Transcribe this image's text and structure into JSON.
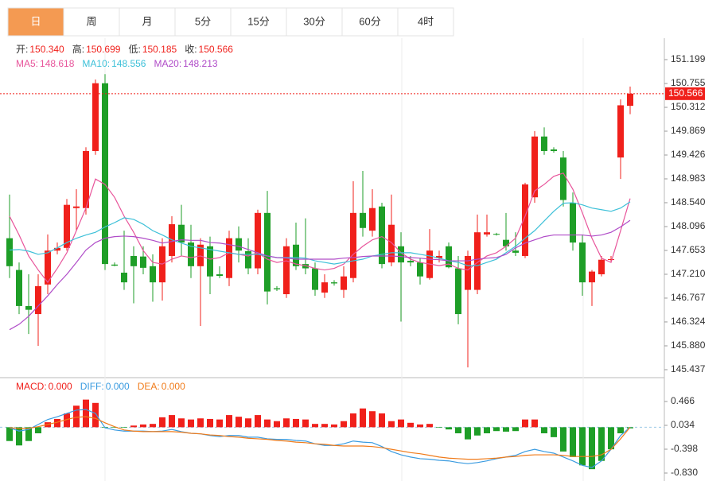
{
  "tabs": [
    "日",
    "周",
    "月",
    "5分",
    "15分",
    "30分",
    "60分",
    "4时"
  ],
  "active_tab": 0,
  "chart_data": [
    {
      "type": "candlestick",
      "quote": [
        {
          "label": "开:",
          "value": "150.340"
        },
        {
          "label": "高:",
          "value": "150.699"
        },
        {
          "label": "低:",
          "value": "150.185"
        },
        {
          "label": "收:",
          "value": "150.566"
        }
      ],
      "up_color": "#f0201b",
      "down_color": "#1e9e27",
      "open": [
        147.88,
        147.29,
        146.62,
        146.47,
        147.02,
        147.65,
        147.7,
        148.44,
        148.44,
        149.5,
        150.76,
        147.39,
        147.24,
        147.55,
        147.54,
        147.36,
        147.06,
        147.55,
        148.13,
        147.8,
        147.36,
        147.73,
        147.21,
        147.14,
        147.88,
        147.64,
        147.32,
        148.35,
        146.95,
        146.84,
        147.76,
        147.4,
        147.32,
        146.87,
        147.06,
        146.92,
        147.14,
        148.35,
        148.02,
        148.47,
        147.43,
        147.73,
        147.46,
        147.43,
        147.14,
        147.51,
        147.73,
        147.32,
        146.92,
        146.92,
        147.95,
        147.96,
        147.85,
        147.65,
        147.55,
        148.64,
        149.77,
        149.53,
        149.38,
        148.54,
        147.8,
        147.06,
        147.21,
        147.48,
        149.38,
        150.34
      ],
      "high": [
        148.69,
        147.43,
        147.21,
        147.21,
        147.95,
        147.8,
        148.61,
        148.79,
        149.57,
        150.83,
        150.93,
        147.43,
        148.02,
        147.73,
        147.73,
        147.58,
        147.88,
        148.29,
        148.5,
        148.13,
        147.88,
        147.91,
        147.36,
        148.02,
        148.1,
        147.88,
        148.41,
        148.76,
        146.99,
        147.88,
        148.17,
        148.25,
        147.43,
        147.21,
        147.1,
        147.36,
        148.94,
        149.13,
        148.79,
        148.54,
        148.69,
        147.99,
        147.55,
        147.51,
        148.05,
        147.65,
        147.8,
        147.55,
        147.65,
        148.32,
        148.32,
        147.98,
        148.35,
        147.99,
        148.91,
        149.87,
        149.94,
        149.57,
        149.5,
        148.73,
        147.95,
        147.29,
        147.55,
        147.55,
        150.46,
        150.699
      ],
      "low": [
        147.14,
        146.47,
        146.1,
        145.88,
        146.84,
        147.58,
        147.65,
        148.02,
        148.32,
        149.43,
        147.29,
        147.36,
        146.92,
        146.67,
        147.21,
        146.7,
        146.72,
        147.43,
        147.55,
        147.14,
        146.25,
        146.84,
        147.14,
        146.99,
        147.43,
        147.21,
        147.21,
        146.65,
        146.9,
        146.77,
        147.29,
        147.21,
        146.81,
        146.77,
        147.0,
        146.77,
        147.06,
        147.91,
        147.91,
        147.32,
        147.36,
        146.33,
        147.36,
        147.02,
        147.11,
        147.43,
        147.32,
        146.28,
        145.48,
        146.84,
        147.91,
        147.93,
        147.65,
        147.55,
        147.51,
        148.54,
        149.43,
        149.47,
        148.47,
        147.65,
        146.81,
        146.62,
        147.17,
        147.45,
        148.98,
        150.185
      ],
      "close": [
        147.36,
        146.62,
        146.55,
        146.99,
        147.65,
        147.7,
        148.5,
        148.47,
        149.5,
        150.76,
        147.4,
        147.37,
        147.06,
        147.36,
        147.33,
        147.06,
        147.73,
        148.14,
        147.8,
        147.36,
        147.76,
        147.17,
        147.18,
        147.88,
        147.65,
        147.32,
        148.35,
        146.89,
        146.93,
        147.73,
        147.36,
        147.32,
        146.92,
        147.06,
        147.04,
        147.17,
        148.35,
        148.07,
        148.44,
        147.4,
        148.13,
        147.43,
        147.43,
        147.17,
        147.65,
        147.55,
        147.34,
        146.47,
        147.55,
        147.99,
        147.99,
        147.95,
        147.73,
        147.61,
        148.88,
        149.77,
        149.5,
        149.5,
        148.59,
        147.8,
        147.06,
        147.26,
        147.48,
        147.49,
        150.35,
        150.566
      ],
      "series": [
        {
          "name": "MA5:",
          "legend_value": "148.618",
          "color": "#e8559b",
          "values": [
            148.29,
            147.94,
            147.55,
            147.29,
            147.06,
            147.32,
            147.61,
            148.02,
            148.44,
            148.98,
            148.88,
            148.64,
            148.29,
            147.99,
            147.65,
            147.43,
            147.4,
            147.49,
            147.55,
            147.52,
            147.55,
            147.49,
            147.52,
            147.61,
            147.58,
            147.55,
            147.61,
            147.49,
            147.43,
            147.46,
            147.4,
            147.37,
            147.32,
            147.29,
            147.32,
            147.4,
            147.58,
            147.73,
            147.85,
            147.91,
            147.8,
            147.61,
            147.49,
            147.43,
            147.4,
            147.37,
            147.4,
            147.32,
            147.29,
            147.43,
            147.55,
            147.61,
            147.73,
            147.88,
            148.29,
            148.76,
            148.88,
            149.03,
            149.09,
            148.79,
            148.35,
            147.88,
            147.51,
            147.43,
            148.02,
            148.618
          ]
        },
        {
          "name": "MA10:",
          "legend_value": "148.556",
          "color": "#3cc0d8",
          "values": [
            147.66,
            147.67,
            147.64,
            147.58,
            147.61,
            147.7,
            147.8,
            147.88,
            147.94,
            147.99,
            148.09,
            148.17,
            148.26,
            148.23,
            148.14,
            148.02,
            147.94,
            147.85,
            147.79,
            147.73,
            147.7,
            147.67,
            147.64,
            147.61,
            147.58,
            147.58,
            147.58,
            147.55,
            147.52,
            147.52,
            147.52,
            147.51,
            147.46,
            147.43,
            147.4,
            147.43,
            147.46,
            147.49,
            147.55,
            147.58,
            147.61,
            147.61,
            147.61,
            147.58,
            147.55,
            147.51,
            147.46,
            147.43,
            147.37,
            147.37,
            147.43,
            147.49,
            147.61,
            147.73,
            147.88,
            148.02,
            148.2,
            148.38,
            148.53,
            148.54,
            148.5,
            148.44,
            148.41,
            148.38,
            148.44,
            148.556
          ]
        },
        {
          "name": "MA20:",
          "legend_value": "148.213",
          "color": "#b04cc8",
          "values": [
            146.18,
            146.28,
            146.43,
            146.62,
            146.81,
            147.02,
            147.21,
            147.43,
            147.66,
            147.8,
            147.88,
            147.91,
            147.92,
            147.91,
            147.88,
            147.84,
            147.79,
            147.82,
            147.85,
            147.84,
            147.84,
            147.8,
            147.79,
            147.76,
            147.73,
            147.67,
            147.61,
            147.55,
            147.52,
            147.51,
            147.49,
            147.49,
            147.49,
            147.49,
            147.49,
            147.51,
            147.52,
            147.54,
            147.55,
            147.55,
            147.55,
            147.54,
            147.52,
            147.51,
            147.49,
            147.48,
            147.46,
            147.46,
            147.46,
            147.49,
            147.51,
            147.52,
            147.58,
            147.7,
            147.79,
            147.85,
            147.91,
            147.94,
            147.94,
            147.94,
            147.94,
            147.92,
            147.94,
            147.99,
            148.09,
            148.213
          ]
        }
      ],
      "last_price": {
        "value": 150.566,
        "label": "150.566"
      },
      "ylim": [
        145.289,
        151.642
      ],
      "yticks": [
        151.199,
        150.755,
        150.312,
        149.869,
        149.426,
        148.983,
        {
          "value": 148.54,
          "label": "148.540"
        },
        148.096,
        147.653,
        {
          "value": 147.21,
          "label": "147.210"
        },
        146.767,
        146.324,
        {
          "value": 145.88,
          "label": "145.880"
        },
        145.437
      ]
    },
    {
      "type": "macd",
      "up_color": "#f0201b",
      "down_color": "#1e9e27",
      "histogram": {
        "name": "MACD:",
        "legend_value": "0.000",
        "color": "#f0201b",
        "values": [
          -0.25,
          -0.33,
          -0.25,
          -0.11,
          0.09,
          0.15,
          0.25,
          0.39,
          0.5,
          0.44,
          -0.01,
          -0.01,
          -0.01,
          0.03,
          0.05,
          0.06,
          0.18,
          0.22,
          0.16,
          0.14,
          0.16,
          0.15,
          0.14,
          0.22,
          0.19,
          0.16,
          0.22,
          0.14,
          0.11,
          0.16,
          0.15,
          0.14,
          0.06,
          0.06,
          0.05,
          0.11,
          0.25,
          0.34,
          0.29,
          0.25,
          0.11,
          0.14,
          0.08,
          0.05,
          0.06,
          -0.01,
          -0.04,
          -0.11,
          -0.22,
          -0.15,
          -0.11,
          -0.07,
          -0.08,
          -0.07,
          0.14,
          0.14,
          -0.11,
          -0.18,
          -0.44,
          -0.54,
          -0.69,
          -0.76,
          -0.61,
          -0.4,
          -0.11,
          -0.02
        ]
      },
      "series": [
        {
          "name": "DIFF:",
          "legend_value": "0.000",
          "color": "#3a9be0",
          "values": [
            -0.01,
            -0.07,
            -0.04,
            0.05,
            0.14,
            0.19,
            0.25,
            0.31,
            0.32,
            0.25,
            -0.01,
            -0.05,
            -0.07,
            -0.07,
            -0.07,
            -0.08,
            -0.07,
            -0.04,
            -0.08,
            -0.11,
            -0.12,
            -0.15,
            -0.17,
            -0.15,
            -0.15,
            -0.18,
            -0.18,
            -0.21,
            -0.22,
            -0.22,
            -0.24,
            -0.25,
            -0.3,
            -0.33,
            -0.33,
            -0.3,
            -0.25,
            -0.27,
            -0.28,
            -0.35,
            -0.44,
            -0.5,
            -0.54,
            -0.57,
            -0.58,
            -0.6,
            -0.61,
            -0.64,
            -0.66,
            -0.64,
            -0.61,
            -0.57,
            -0.54,
            -0.51,
            -0.44,
            -0.4,
            -0.44,
            -0.47,
            -0.54,
            -0.61,
            -0.69,
            -0.73,
            -0.61,
            -0.4,
            -0.15,
            0
          ]
        },
        {
          "name": "DEA:",
          "legend_value": "0.000",
          "color": "#f07b1a",
          "values": [
            -0.01,
            -0.02,
            -0.02,
            0.01,
            0.05,
            0.09,
            0.14,
            0.18,
            0.19,
            0.16,
            0.08,
            0.01,
            -0.05,
            -0.07,
            -0.08,
            -0.08,
            -0.08,
            -0.08,
            -0.09,
            -0.11,
            -0.12,
            -0.14,
            -0.15,
            -0.17,
            -0.18,
            -0.2,
            -0.21,
            -0.22,
            -0.24,
            -0.25,
            -0.27,
            -0.28,
            -0.3,
            -0.31,
            -0.33,
            -0.34,
            -0.34,
            -0.34,
            -0.35,
            -0.37,
            -0.4,
            -0.43,
            -0.46,
            -0.48,
            -0.51,
            -0.54,
            -0.56,
            -0.57,
            -0.58,
            -0.58,
            -0.57,
            -0.56,
            -0.54,
            -0.53,
            -0.51,
            -0.5,
            -0.5,
            -0.5,
            -0.51,
            -0.53,
            -0.53,
            -0.53,
            -0.5,
            -0.4,
            -0.21,
            0
          ]
        }
      ],
      "ylim": [
        -0.974,
        0.869
      ],
      "yticks": [
        0.466,
        0.034,
        -0.398,
        {
          "value": -0.83,
          "label": "-0.830"
        }
      ]
    }
  ]
}
